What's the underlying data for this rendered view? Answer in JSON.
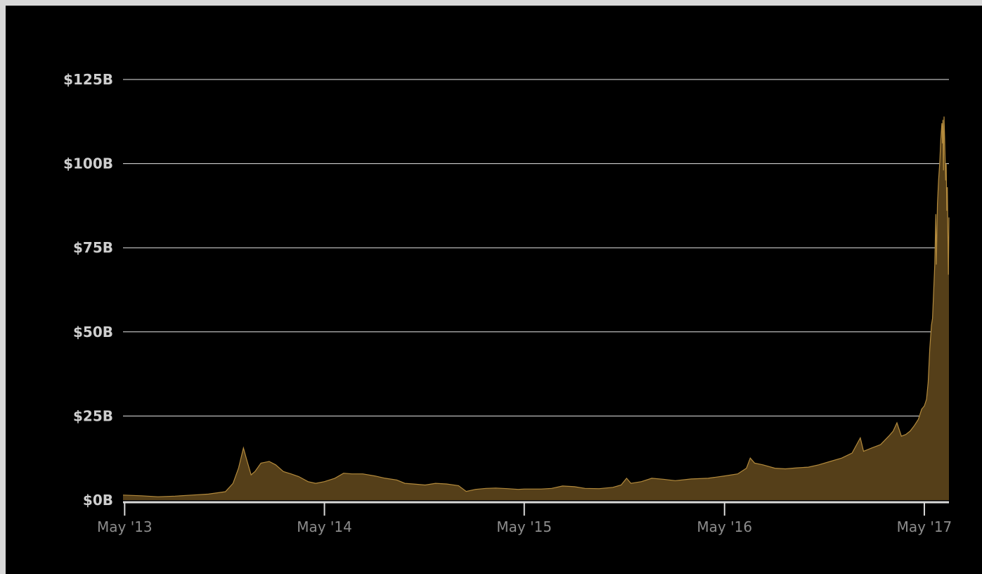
{
  "colors": {
    "background": "#000000",
    "frame": "#d9d9d9",
    "area_fill": "#553f19",
    "area_line": "#b38a3c",
    "grid": "#e6e6e6",
    "axis": "#d9d9d9",
    "ytick_text": "#cfcfcf",
    "xtick_text": "#8c8c8c"
  },
  "chart_data": {
    "type": "area",
    "title": "",
    "xlabel": "",
    "ylabel": "",
    "y_unit": "billion USD",
    "ylim": [
      0,
      125
    ],
    "xlim": [
      "2013-04-28",
      "2017-06-15"
    ],
    "grid": true,
    "y_ticks": [
      {
        "value": 0,
        "label": "$0B"
      },
      {
        "value": 25,
        "label": "$25B"
      },
      {
        "value": 50,
        "label": "$50B"
      },
      {
        "value": 75,
        "label": "$75B"
      },
      {
        "value": 100,
        "label": "$100B"
      },
      {
        "value": 125,
        "label": "$125B"
      }
    ],
    "x_ticks": [
      {
        "date": "2013-05-01",
        "label": "May '13"
      },
      {
        "date": "2014-05-01",
        "label": "May '14"
      },
      {
        "date": "2015-05-01",
        "label": "May '15"
      },
      {
        "date": "2016-05-01",
        "label": "May '16"
      },
      {
        "date": "2017-05-01",
        "label": "May '17"
      }
    ],
    "series": [
      {
        "points": [
          [
            "2013-04-28",
            1.5
          ],
          [
            "2013-06-01",
            1.3
          ],
          [
            "2013-07-01",
            1.0
          ],
          [
            "2013-08-01",
            1.2
          ],
          [
            "2013-09-01",
            1.5
          ],
          [
            "2013-10-01",
            1.8
          ],
          [
            "2013-11-01",
            2.5
          ],
          [
            "2013-11-15",
            5.0
          ],
          [
            "2013-11-25",
            9.5
          ],
          [
            "2013-12-04",
            15.5
          ],
          [
            "2013-12-10",
            12.0
          ],
          [
            "2013-12-18",
            7.5
          ],
          [
            "2013-12-25",
            8.5
          ],
          [
            "2014-01-05",
            11.0
          ],
          [
            "2014-01-20",
            11.5
          ],
          [
            "2014-02-01",
            10.5
          ],
          [
            "2014-02-15",
            8.5
          ],
          [
            "2014-03-01",
            7.8
          ],
          [
            "2014-03-15",
            7.0
          ],
          [
            "2014-04-01",
            5.5
          ],
          [
            "2014-04-15",
            5.0
          ],
          [
            "2014-05-01",
            5.5
          ],
          [
            "2014-05-20",
            6.5
          ],
          [
            "2014-06-05",
            8.0
          ],
          [
            "2014-06-20",
            7.8
          ],
          [
            "2014-07-10",
            7.8
          ],
          [
            "2014-08-01",
            7.2
          ],
          [
            "2014-08-20",
            6.5
          ],
          [
            "2014-09-10",
            6.0
          ],
          [
            "2014-09-25",
            5.0
          ],
          [
            "2014-10-10",
            4.8
          ],
          [
            "2014-11-01",
            4.5
          ],
          [
            "2014-11-20",
            5.0
          ],
          [
            "2014-12-10",
            4.8
          ],
          [
            "2015-01-01",
            4.3
          ],
          [
            "2015-01-15",
            2.6
          ],
          [
            "2015-02-01",
            3.2
          ],
          [
            "2015-02-20",
            3.5
          ],
          [
            "2015-03-10",
            3.6
          ],
          [
            "2015-04-01",
            3.4
          ],
          [
            "2015-04-20",
            3.2
          ],
          [
            "2015-05-01",
            3.3
          ],
          [
            "2015-06-01",
            3.3
          ],
          [
            "2015-06-20",
            3.5
          ],
          [
            "2015-07-10",
            4.2
          ],
          [
            "2015-08-01",
            4.0
          ],
          [
            "2015-08-20",
            3.5
          ],
          [
            "2015-09-15",
            3.4
          ],
          [
            "2015-10-10",
            3.8
          ],
          [
            "2015-10-25",
            4.5
          ],
          [
            "2015-11-04",
            6.5
          ],
          [
            "2015-11-12",
            5.0
          ],
          [
            "2015-12-01",
            5.5
          ],
          [
            "2015-12-20",
            6.5
          ],
          [
            "2016-01-10",
            6.2
          ],
          [
            "2016-02-01",
            5.8
          ],
          [
            "2016-03-01",
            6.3
          ],
          [
            "2016-04-01",
            6.5
          ],
          [
            "2016-05-01",
            7.2
          ],
          [
            "2016-05-25",
            7.8
          ],
          [
            "2016-06-10",
            9.5
          ],
          [
            "2016-06-17",
            12.5
          ],
          [
            "2016-06-25",
            11.0
          ],
          [
            "2016-07-10",
            10.5
          ],
          [
            "2016-08-01",
            9.5
          ],
          [
            "2016-08-20",
            9.3
          ],
          [
            "2016-09-10",
            9.6
          ],
          [
            "2016-10-01",
            9.8
          ],
          [
            "2016-10-20",
            10.5
          ],
          [
            "2016-11-10",
            11.5
          ],
          [
            "2016-12-01",
            12.5
          ],
          [
            "2016-12-20",
            14.0
          ],
          [
            "2017-01-04",
            18.5
          ],
          [
            "2017-01-10",
            14.5
          ],
          [
            "2017-01-25",
            15.5
          ],
          [
            "2017-02-10",
            16.5
          ],
          [
            "2017-02-25",
            19.0
          ],
          [
            "2017-03-05",
            20.5
          ],
          [
            "2017-03-12",
            23.0
          ],
          [
            "2017-03-20",
            19.0
          ],
          [
            "2017-03-28",
            19.5
          ],
          [
            "2017-04-05",
            20.5
          ],
          [
            "2017-04-12",
            22.0
          ],
          [
            "2017-04-20",
            24.0
          ],
          [
            "2017-04-26",
            27.0
          ],
          [
            "2017-05-01",
            28.0
          ],
          [
            "2017-05-05",
            30.0
          ],
          [
            "2017-05-08",
            35.0
          ],
          [
            "2017-05-11",
            45.0
          ],
          [
            "2017-05-14",
            52.0
          ],
          [
            "2017-05-16",
            54.0
          ],
          [
            "2017-05-18",
            62.0
          ],
          [
            "2017-05-20",
            70.0
          ],
          [
            "2017-05-22",
            85.0
          ],
          [
            "2017-05-23",
            70.0
          ],
          [
            "2017-05-25",
            88.0
          ],
          [
            "2017-05-27",
            95.0
          ],
          [
            "2017-05-29",
            100.0
          ],
          [
            "2017-05-31",
            107.0
          ],
          [
            "2017-06-02",
            112.0
          ],
          [
            "2017-06-03",
            106.0
          ],
          [
            "2017-06-04",
            113.0
          ],
          [
            "2017-06-05",
            98.0
          ],
          [
            "2017-06-06",
            114.0
          ],
          [
            "2017-06-07",
            108.0
          ],
          [
            "2017-06-08",
            102.0
          ],
          [
            "2017-06-09",
            95.0
          ],
          [
            "2017-06-10",
            100.0
          ],
          [
            "2017-06-11",
            86.0
          ],
          [
            "2017-06-12",
            93.0
          ],
          [
            "2017-06-13",
            80.0
          ],
          [
            "2017-06-14",
            67.0
          ],
          [
            "2017-06-15",
            84.0
          ]
        ]
      }
    ]
  }
}
